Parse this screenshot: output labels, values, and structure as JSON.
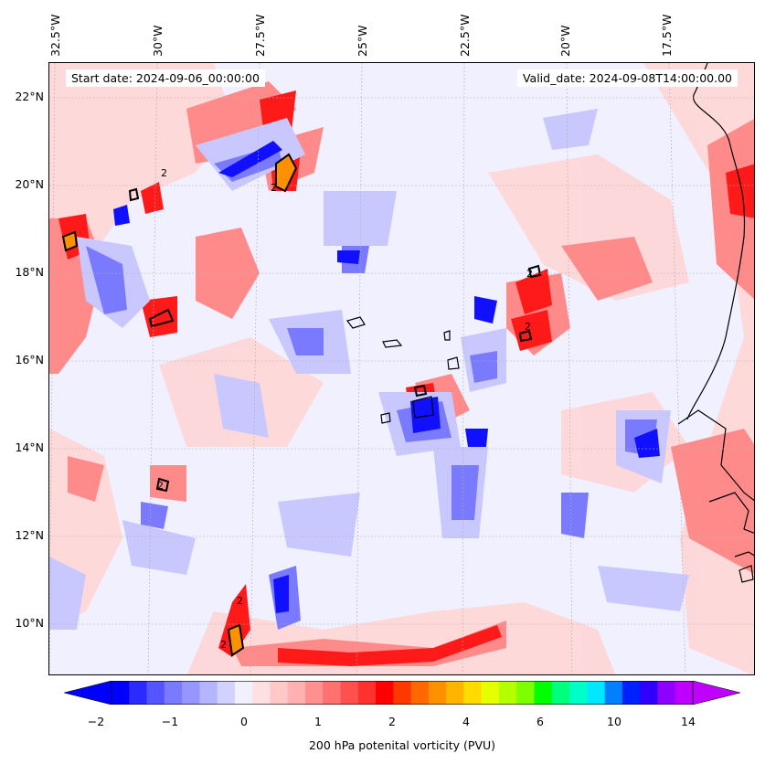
{
  "header": {
    "start_label": "Start date: 2024-09-06_00:00:00",
    "valid_label": "Valid_date: 2024-09-08T14:00:00.00"
  },
  "axes": {
    "longitude_labels": [
      "32.5°W",
      "30°W",
      "27.5°W",
      "25°W",
      "22.5°W",
      "20°W",
      "17.5°W"
    ],
    "latitude_labels": [
      "22°N",
      "20°N",
      "18°N",
      "16°N",
      "14°N",
      "12°N",
      "10°N"
    ]
  },
  "colorbar": {
    "tick_labels": [
      "−2",
      "−1",
      "0",
      "1",
      "2",
      "4",
      "6",
      "10",
      "14"
    ],
    "label": "200 hPa potenital vorticity (PVU)",
    "colors": [
      "#0000ff",
      "#2b2bff",
      "#5555ff",
      "#7a7aff",
      "#9696ff",
      "#b4b4ff",
      "#d2d2ff",
      "#f0f0ff",
      "#ffe0e0",
      "#ffc8c8",
      "#ffb0b0",
      "#ff9090",
      "#ff7070",
      "#ff5050",
      "#ff3030",
      "#ff0000",
      "#ff3800",
      "#ff6800",
      "#ff9000",
      "#ffb400",
      "#ffdc00",
      "#e6ff00",
      "#b4ff00",
      "#7cff00",
      "#00ff00",
      "#00ff7c",
      "#00ffc8",
      "#00e8ff",
      "#0080ff",
      "#0020ff",
      "#3000ff",
      "#9000ff",
      "#c000ff"
    ],
    "extend_min_color": "#0000ff",
    "extend_max_color": "#c000ff"
  },
  "contours": {
    "label": "2"
  },
  "map": {
    "type": "filled contour map",
    "field": "200 hPa potential vorticity",
    "colors": {
      "background": "#f0f0ff",
      "positive_light": "#ffd6d6",
      "positive_mid": "#ff8080",
      "positive_strong": "#ff1a1a",
      "negative_light": "#c8c8ff",
      "negative_mid": "#7a7aff",
      "negative_strong": "#1010ff",
      "orange": "#ff9000",
      "coastline": "#000000"
    }
  }
}
